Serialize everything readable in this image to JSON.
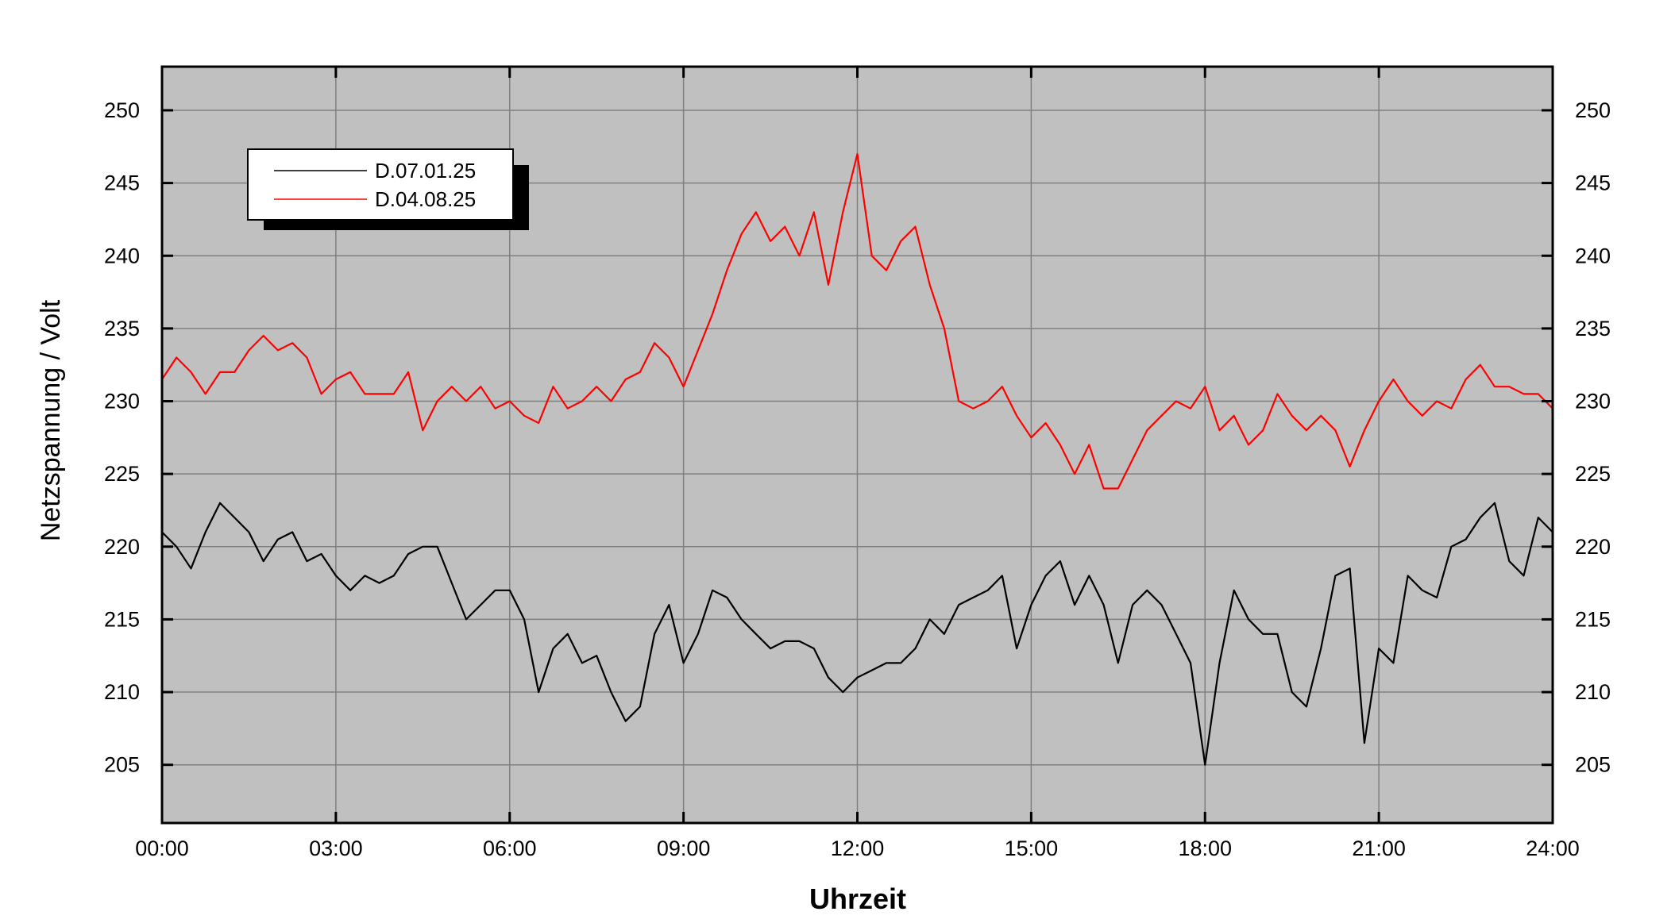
{
  "chart_data": {
    "type": "line",
    "xlabel": "Uhrzeit",
    "ylabel": "Netzspannung / Volt",
    "x": [
      0,
      0.25,
      0.5,
      0.75,
      1,
      1.25,
      1.5,
      1.75,
      2,
      2.25,
      2.5,
      2.75,
      3,
      3.25,
      3.5,
      3.75,
      4,
      4.25,
      4.5,
      4.75,
      5,
      5.25,
      5.5,
      5.75,
      6,
      6.25,
      6.5,
      6.75,
      7,
      7.25,
      7.5,
      7.75,
      8,
      8.25,
      8.5,
      8.75,
      9,
      9.25,
      9.5,
      9.75,
      10,
      10.25,
      10.5,
      10.75,
      11,
      11.25,
      11.5,
      11.75,
      12,
      12.25,
      12.5,
      12.75,
      13,
      13.25,
      13.5,
      13.75,
      14,
      14.25,
      14.5,
      14.75,
      15,
      15.25,
      15.5,
      15.75,
      16,
      16.25,
      16.5,
      16.75,
      17,
      17.25,
      17.5,
      17.75,
      18,
      18.25,
      18.5,
      18.75,
      19,
      19.25,
      19.5,
      19.75,
      20,
      20.25,
      20.5,
      20.75,
      21,
      21.25,
      21.5,
      21.75,
      22,
      22.25,
      22.5,
      22.75,
      23,
      23.25,
      23.5,
      23.75,
      24
    ],
    "series": [
      {
        "name": "D.07.01.25",
        "color": "#000000",
        "values": [
          221,
          220,
          218.5,
          221,
          223,
          222,
          221,
          219,
          220.5,
          221,
          219,
          219.5,
          218,
          217,
          218,
          217.5,
          218,
          219.5,
          220,
          220,
          217.5,
          215,
          216,
          217,
          217,
          215,
          210,
          213,
          214,
          212,
          212.5,
          210,
          208,
          209,
          214,
          216,
          212,
          214,
          217,
          216.5,
          215,
          214,
          213,
          213.5,
          213.5,
          213,
          211,
          210,
          211,
          211.5,
          212,
          212,
          213,
          215,
          214,
          216,
          216.5,
          217,
          218,
          213,
          216,
          218,
          219,
          216,
          218,
          216,
          212,
          216,
          217,
          216,
          214,
          212,
          205,
          212,
          217,
          215,
          214,
          214,
          210,
          209,
          213,
          218,
          218.5,
          206.5,
          213,
          212,
          218,
          217,
          216.5,
          220,
          220.5,
          222,
          223,
          219,
          218,
          222,
          221
        ]
      },
      {
        "name": "D.04.08.25",
        "color": "#ff0000",
        "values": [
          231.5,
          233,
          232,
          230.5,
          232,
          232,
          233.5,
          234.5,
          233.5,
          234,
          233,
          230.5,
          231.5,
          232,
          230.5,
          230.5,
          230.5,
          232,
          228,
          230,
          231,
          230,
          231,
          229.5,
          230,
          229,
          228.5,
          231,
          229.5,
          230,
          231,
          230,
          231.5,
          232,
          234,
          233,
          231,
          233.5,
          236,
          239,
          241.5,
          243,
          241,
          242,
          240,
          243,
          238,
          243,
          247,
          240,
          239,
          241,
          242,
          238,
          235,
          230,
          229.5,
          230,
          231,
          229,
          227.5,
          228.5,
          227,
          225,
          227,
          224,
          224,
          226,
          228,
          229,
          230,
          229.5,
          231,
          228,
          229,
          227,
          228,
          230.5,
          229,
          228,
          229,
          228,
          225.5,
          228,
          230,
          231.5,
          230,
          229,
          230,
          229.5,
          231.5,
          232.5,
          231,
          231,
          230.5,
          230.5,
          229.5
        ]
      }
    ],
    "xlim": [
      0,
      24
    ],
    "xticks": [
      {
        "value": 0,
        "label": "00:00"
      },
      {
        "value": 3,
        "label": "03:00"
      },
      {
        "value": 6,
        "label": "06:00"
      },
      {
        "value": 9,
        "label": "09:00"
      },
      {
        "value": 12,
        "label": "12:00"
      },
      {
        "value": 15,
        "label": "15:00"
      },
      {
        "value": 18,
        "label": "18:00"
      },
      {
        "value": 21,
        "label": "21:00"
      },
      {
        "value": 24,
        "label": "24:00"
      }
    ],
    "ylim": [
      201,
      253
    ],
    "yticks": [
      205,
      210,
      215,
      220,
      225,
      230,
      235,
      240,
      245,
      250
    ],
    "grid": true,
    "legend": "upper left"
  }
}
